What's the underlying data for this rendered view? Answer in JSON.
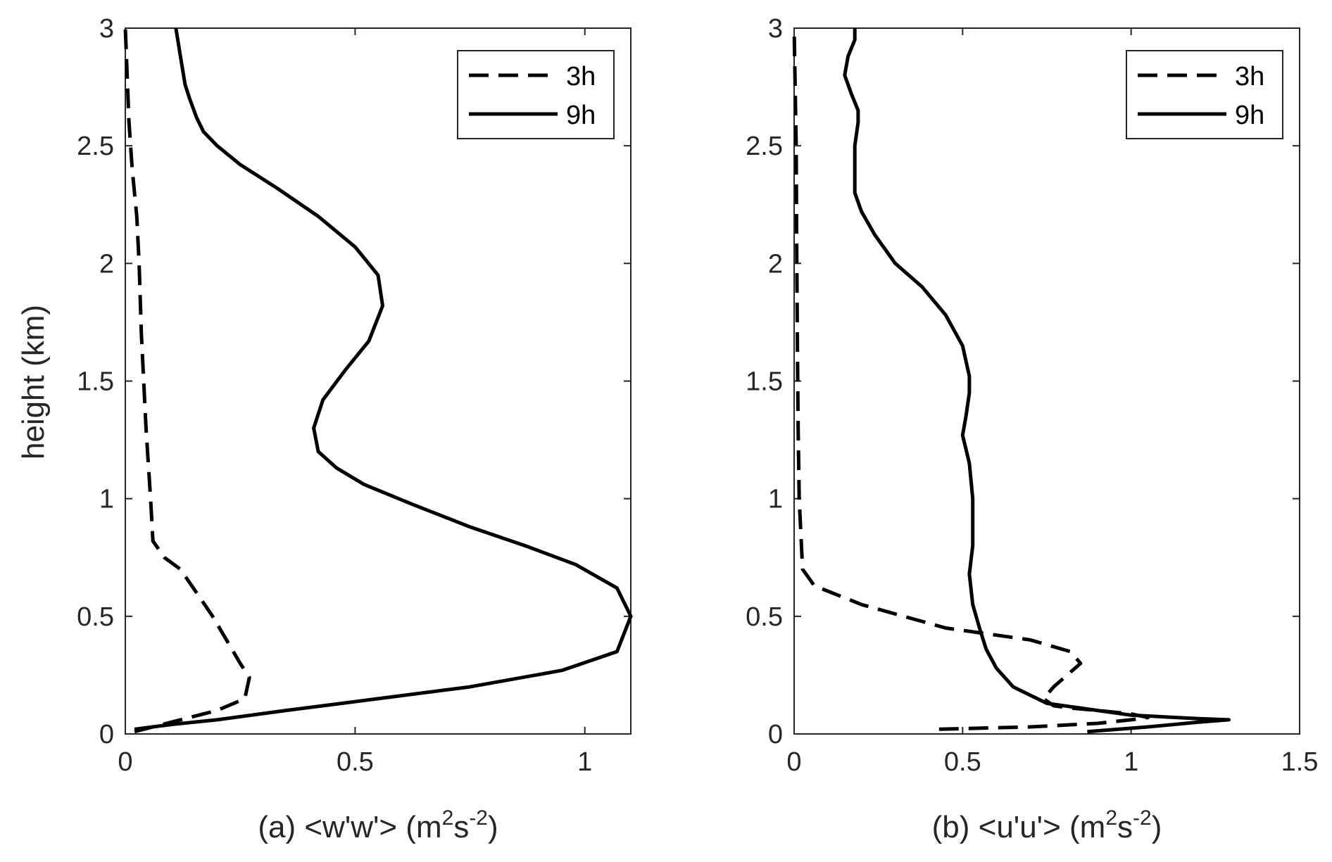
{
  "chart_data": [
    {
      "type": "line",
      "xlabel": "(a) <w'w'> (m",
      "xlabel_sup1": "2",
      "xlabel_mid": "s",
      "xlabel_sup2": "-2",
      "xlabel_end": ")",
      "ylabel": "height (km)",
      "xlim": [
        0,
        1.1
      ],
      "ylim": [
        0,
        3
      ],
      "xticks": [
        0,
        0.5,
        1
      ],
      "xtick_labels": [
        "0",
        "0.5",
        "1"
      ],
      "yticks": [
        0,
        0.5,
        1,
        1.5,
        2,
        2.5,
        3
      ],
      "ytick_labels": [
        "0",
        "0.5",
        "1",
        "1.5",
        "2",
        "2.5",
        "3"
      ],
      "legend_position": "top-right",
      "series": [
        {
          "name": "3h",
          "style": "dashed",
          "color": "#000000",
          "x": [
            0.02,
            0.1,
            0.2,
            0.26,
            0.27,
            0.25,
            0.22,
            0.19,
            0.155,
            0.12,
            0.085,
            0.06,
            0.055,
            0.045,
            0.04,
            0.035,
            0.03,
            0.025,
            0.015,
            0.008,
            0.004,
            0.0
          ],
          "y": [
            0.01,
            0.05,
            0.1,
            0.15,
            0.24,
            0.3,
            0.4,
            0.5,
            0.6,
            0.7,
            0.75,
            0.82,
            1.0,
            1.3,
            1.5,
            1.7,
            2.0,
            2.2,
            2.4,
            2.6,
            2.8,
            3.0
          ]
        },
        {
          "name": "9h",
          "style": "solid",
          "color": "#000000",
          "x": [
            0.02,
            0.1,
            0.2,
            0.35,
            0.55,
            0.75,
            0.95,
            1.07,
            1.1,
            1.07,
            0.98,
            0.87,
            0.75,
            0.62,
            0.52,
            0.46,
            0.42,
            0.41,
            0.43,
            0.48,
            0.53,
            0.56,
            0.55,
            0.5,
            0.42,
            0.33,
            0.25,
            0.2,
            0.17,
            0.155,
            0.14,
            0.13,
            0.125,
            0.12,
            0.115,
            0.11
          ],
          "y": [
            0.02,
            0.04,
            0.06,
            0.1,
            0.15,
            0.2,
            0.27,
            0.35,
            0.5,
            0.62,
            0.72,
            0.8,
            0.88,
            0.98,
            1.06,
            1.13,
            1.2,
            1.3,
            1.42,
            1.55,
            1.67,
            1.82,
            1.95,
            2.07,
            2.2,
            2.32,
            2.42,
            2.5,
            2.56,
            2.62,
            2.7,
            2.76,
            2.82,
            2.88,
            2.94,
            3.0
          ]
        }
      ]
    },
    {
      "type": "line",
      "xlabel": "(b) <u'u'> (m",
      "xlabel_sup1": "2",
      "xlabel_mid": "s",
      "xlabel_sup2": "-2",
      "xlabel_end": ")",
      "ylabel": "",
      "xlim": [
        0,
        1.5
      ],
      "ylim": [
        0,
        3
      ],
      "xticks": [
        0,
        0.5,
        1,
        1.5
      ],
      "xtick_labels": [
        "0",
        "0.5",
        "1",
        "1.5"
      ],
      "yticks": [
        0,
        0.5,
        1,
        1.5,
        2,
        2.5,
        3
      ],
      "ytick_labels": [
        "0",
        "0.5",
        "1",
        "1.5",
        "2",
        "2.5",
        "3"
      ],
      "legend_position": "top-right",
      "series": [
        {
          "name": "3h",
          "style": "dashed",
          "color": "#000000",
          "x": [
            0.43,
            0.7,
            0.9,
            1.0,
            1.05,
            1.0,
            0.9,
            0.82,
            0.77,
            0.74,
            0.77,
            0.85,
            0.82,
            0.7,
            0.45,
            0.2,
            0.06,
            0.025,
            0.02,
            0.015,
            0.012,
            0.01,
            0.008,
            0.006,
            0.0
          ],
          "y": [
            0.02,
            0.03,
            0.045,
            0.06,
            0.07,
            0.085,
            0.1,
            0.11,
            0.12,
            0.15,
            0.2,
            0.3,
            0.35,
            0.4,
            0.45,
            0.55,
            0.63,
            0.7,
            0.85,
            1.0,
            1.3,
            1.6,
            2.0,
            2.5,
            3.0
          ]
        },
        {
          "name": "9h",
          "style": "solid",
          "color": "#000000",
          "x": [
            0.87,
            1.05,
            1.2,
            1.29,
            1.2,
            1.0,
            0.9,
            0.75,
            0.65,
            0.6,
            0.57,
            0.55,
            0.53,
            0.52,
            0.53,
            0.53,
            0.52,
            0.5,
            0.51,
            0.52,
            0.52,
            0.5,
            0.45,
            0.38,
            0.3,
            0.24,
            0.2,
            0.18,
            0.18,
            0.18,
            0.19,
            0.19,
            0.17,
            0.15,
            0.16,
            0.18,
            0.18
          ],
          "y": [
            0.01,
            0.03,
            0.05,
            0.06,
            0.065,
            0.08,
            0.1,
            0.13,
            0.2,
            0.28,
            0.36,
            0.45,
            0.55,
            0.68,
            0.8,
            1.0,
            1.15,
            1.27,
            1.35,
            1.45,
            1.52,
            1.65,
            1.78,
            1.9,
            2.0,
            2.12,
            2.22,
            2.3,
            2.4,
            2.5,
            2.6,
            2.65,
            2.72,
            2.8,
            2.88,
            2.95,
            3.0
          ]
        }
      ]
    }
  ]
}
